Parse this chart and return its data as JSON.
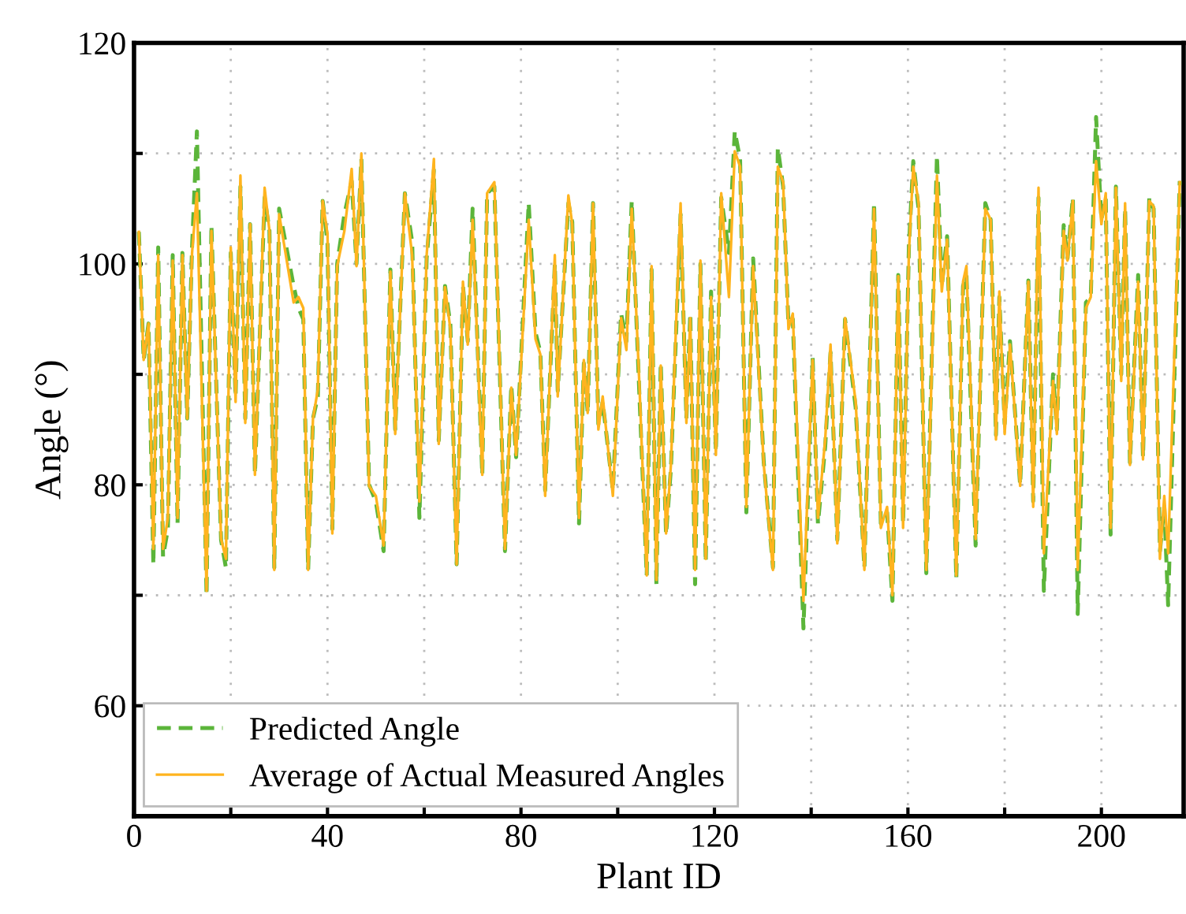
{
  "chart_data": {
    "type": "line",
    "xlabel": "Plant ID",
    "ylabel": "Angle (°)",
    "x": [
      1,
      2,
      3,
      4,
      5,
      6,
      7,
      8,
      9,
      10,
      11,
      12,
      13,
      15,
      16,
      18,
      19,
      20,
      21,
      22,
      23,
      24,
      25,
      27,
      28,
      29,
      30,
      33,
      34,
      35,
      36,
      37,
      38,
      39,
      40,
      41,
      42,
      43.5,
      45,
      46,
      47,
      48.6,
      50,
      51.6,
      53,
      54,
      56,
      57.5,
      59,
      60.5,
      62,
      63,
      64.3,
      65.4,
      66.7,
      68,
      69,
      70,
      72,
      73,
      74.5,
      76.7,
      78,
      79,
      81.6,
      83,
      84,
      85,
      87,
      87.6,
      89.8,
      90.6,
      92,
      93,
      93.8,
      94.9,
      96,
      96.9,
      99,
      100.7,
      101.8,
      102.9,
      104.5,
      106,
      107,
      108,
      108.9,
      110,
      111,
      113,
      114.2,
      115,
      116,
      117.1,
      118.2,
      119.3,
      120.3,
      121.4,
      123,
      124.2,
      125.3,
      126.6,
      128,
      130.2,
      132.1,
      133.1,
      134.2,
      135.3,
      136.2,
      138.4,
      140.3,
      141.4,
      142.9,
      144,
      145.4,
      147,
      149.2,
      151,
      153,
      154.4,
      155.7,
      156.8,
      158,
      159,
      160.2,
      161.1,
      162.2,
      163.8,
      166,
      167,
      168.1,
      170,
      171.4,
      172.1,
      174,
      176,
      177.1,
      178.2,
      178.9,
      180,
      181.1,
      183.2,
      184.9,
      185.9,
      187,
      188.1,
      190,
      190.8,
      192.2,
      193,
      194.1,
      195.1,
      196.8,
      197.8,
      198.9,
      200,
      200.9,
      201.9,
      203,
      204.1,
      204.9,
      205.9,
      207.6,
      208.6,
      209.9,
      210.8,
      212.1,
      213,
      213.8,
      216.2
    ],
    "series": [
      {
        "name": "Predicted Angle",
        "color": "#5bb53a",
        "line_style": "dashed",
        "values": [
          102.9,
          91.3,
          94.6,
          72.8,
          101.5,
          73.5,
          76,
          100.8,
          76.5,
          101,
          86,
          101.5,
          112,
          70,
          103.5,
          75,
          72.5,
          101,
          88,
          107,
          86,
          103.6,
          81,
          106,
          103,
          72.5,
          105,
          98,
          96,
          95,
          72.3,
          86,
          88,
          105.7,
          102,
          76,
          100,
          104.5,
          107.5,
          100,
          109.5,
          80,
          78.5,
          74,
          99.5,
          85,
          106.4,
          102,
          77,
          100.5,
          108.5,
          84,
          98,
          94.5,
          72.8,
          98,
          93,
          105,
          80.9,
          106.4,
          107,
          74,
          89,
          82.5,
          105.5,
          93.8,
          92,
          79.5,
          100,
          88.5,
          105.5,
          103.8,
          76.5,
          91,
          86.5,
          105.5,
          85.5,
          87.5,
          79.5,
          95.5,
          93,
          105.7,
          88,
          71.8,
          99.5,
          71,
          91,
          75.5,
          81.5,
          104.5,
          86,
          95.5,
          71,
          100,
          73,
          97.5,
          83,
          106,
          101,
          112,
          109.5,
          77.5,
          100.5,
          82,
          72.5,
          110.5,
          107,
          94.5,
          95,
          67,
          91.5,
          76.5,
          83.5,
          92,
          75,
          95,
          87,
          72.5,
          105.5,
          76.5,
          77.5,
          69.5,
          99,
          76.5,
          101.5,
          109.3,
          105,
          72,
          109.8,
          98,
          102.5,
          71.5,
          98,
          99,
          74.5,
          105.5,
          104,
          84.5,
          97,
          85.5,
          93,
          80,
          98.5,
          78.5,
          106,
          70.4,
          90,
          85,
          103.5,
          100.5,
          106,
          68.3,
          96.5,
          97,
          113.3,
          104,
          106,
          75.5,
          107,
          90,
          105,
          82,
          99,
          82.5,
          106,
          105,
          74,
          78,
          69.1,
          107.5
        ]
      },
      {
        "name": "Average of Actual Measured Angles",
        "color": "#ffb41e",
        "line_style": "solid",
        "values": [
          102.9,
          91.3,
          94.6,
          74.2,
          100.8,
          74.2,
          77,
          100.3,
          77,
          100.8,
          86,
          101,
          106.4,
          70.4,
          103,
          75.1,
          73.3,
          101.5,
          87.5,
          108,
          85.6,
          103.6,
          80.9,
          106.9,
          103,
          72.3,
          104.5,
          96.5,
          97,
          96,
          72.3,
          86,
          88.6,
          105.7,
          102.7,
          75.6,
          99.8,
          103,
          108.6,
          99.8,
          110,
          79.9,
          79,
          74.5,
          99.3,
          84.6,
          106.4,
          100.8,
          78.5,
          100.8,
          109.5,
          83.7,
          97.9,
          94.1,
          72.8,
          98.4,
          92.7,
          104,
          80.9,
          106.4,
          107.4,
          74.2,
          88.8,
          82.7,
          104,
          93.2,
          91.8,
          79,
          100.8,
          88,
          106.2,
          103.6,
          77,
          91.3,
          86.5,
          105.5,
          85,
          88,
          79,
          95.1,
          92.2,
          105,
          88.9,
          71.8,
          99.8,
          71.4,
          90.8,
          75.6,
          81.8,
          105.5,
          85.6,
          95.1,
          72.3,
          100.3,
          73.3,
          97,
          82.7,
          106.4,
          97,
          110.2,
          108.8,
          78,
          99.8,
          81.8,
          72.3,
          108.8,
          107.4,
          94.1,
          95.5,
          69.5,
          91.3,
          77,
          84.1,
          92.7,
          74.7,
          95.1,
          87.5,
          72.3,
          105,
          76.1,
          78,
          70,
          98.9,
          76.1,
          101,
          108.8,
          105.5,
          72.3,
          108,
          97.5,
          102.2,
          71.8,
          98.4,
          99.8,
          75.1,
          105,
          104,
          84.1,
          97.5,
          84.6,
          92.7,
          79.9,
          98.4,
          78,
          106.9,
          73.8,
          89.4,
          84.6,
          103,
          100.3,
          105.7,
          72.3,
          96,
          97,
          109.3,
          103.6,
          106.4,
          76.1,
          106.9,
          89.4,
          105.5,
          81.8,
          98.4,
          82.3,
          105.7,
          105.2,
          73.3,
          79,
          73.8,
          107.4
        ]
      }
    ],
    "xlim": [
      0,
      217
    ],
    "ylim": [
      50,
      120
    ],
    "xticks": [
      0,
      {
        "value": 20,
        "label": null
      },
      40,
      {
        "value": 60,
        "label": null
      },
      80,
      {
        "value": 100,
        "label": null
      },
      120,
      {
        "value": 140,
        "label": null
      },
      160,
      {
        "value": 180,
        "label": null
      },
      200
    ],
    "yticks": [
      {
        "value": 50,
        "label": null
      },
      60,
      {
        "value": 70,
        "label": null
      },
      80,
      {
        "value": 90,
        "label": null
      },
      100,
      {
        "value": 110,
        "label": null
      },
      120
    ],
    "grid": true,
    "legend": "bottom left",
    "marker": "none"
  }
}
